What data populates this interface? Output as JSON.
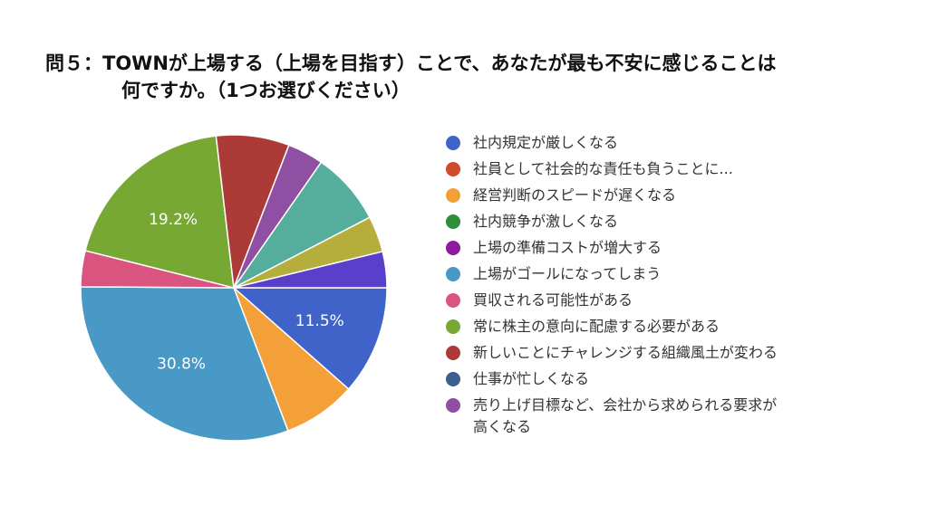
{
  "title": {
    "line1": "問５：TOWNが上場する（上場を目指す）ことで、あなたが最も不安に感じることは",
    "line2": "何ですか。（1つお選びください）"
  },
  "chart_data": {
    "type": "pie",
    "slices": [
      {
        "label": "社内規定が厳しくなる",
        "value": 11.5,
        "color": "#3f63c9",
        "data_label": "11.5%"
      },
      {
        "label": "社員として社会的な責任も負うことに...",
        "value": 0,
        "color": "#d34a2a",
        "data_label": ""
      },
      {
        "label": "経営判断のスピードが遅くなる",
        "value": 7.7,
        "color": "#f4a038",
        "data_label": ""
      },
      {
        "label": "社内競争が激しくなる",
        "value": 0,
        "color": "#2e8f3a",
        "data_label": ""
      },
      {
        "label": "上場の準備コストが増大する",
        "value": 0,
        "color": "#8e1b9e",
        "data_label": ""
      },
      {
        "label": "上場がゴールになってしまう",
        "value": 30.8,
        "color": "#4899c6",
        "data_label": "30.8%"
      },
      {
        "label": "買収される可能性がある",
        "value": 3.8,
        "color": "#d9557f",
        "data_label": ""
      },
      {
        "label": "常に株主の意向に配慮する必要がある",
        "value": 19.2,
        "color": "#77a833",
        "data_label": "19.2%"
      },
      {
        "label": "新しいことにチャレンジする組織風土が変わる",
        "value": 7.7,
        "color": "#ac3a36",
        "data_label": ""
      },
      {
        "label": "仕事が忙しくなる",
        "value": 0,
        "color": "#3b5f91",
        "data_label": ""
      },
      {
        "label": "売り上げ目標など、会社から求められる要求が高くなる",
        "value": 3.8,
        "color": "#8f4fa3",
        "data_label": ""
      },
      {
        "label": "",
        "value": 7.7,
        "color": "#55ad9c",
        "data_label": ""
      },
      {
        "label": "",
        "value": 3.8,
        "color": "#b5ad3c",
        "data_label": ""
      },
      {
        "label": "",
        "value": 3.8,
        "color": "#5a3fcb",
        "data_label": ""
      }
    ],
    "legend_placement": "right",
    "start_angle": "3 o'clock, clockwise"
  },
  "legend": {
    "items": [
      {
        "label": "社内規定が厳しくなる",
        "color": "#3f63c9"
      },
      {
        "label": "社員として社会的な責任も負うことに...",
        "color": "#d34a2a"
      },
      {
        "label": "経営判断のスピードが遅くなる",
        "color": "#f4a038"
      },
      {
        "label": "社内競争が激しくなる",
        "color": "#2e8f3a"
      },
      {
        "label": "上場の準備コストが増大する",
        "color": "#8e1b9e"
      },
      {
        "label": "上場がゴールになってしまう",
        "color": "#4899c6"
      },
      {
        "label": "買収される可能性がある",
        "color": "#d9557f"
      },
      {
        "label": "常に株主の意向に配慮する必要がある",
        "color": "#77a833"
      },
      {
        "label": "新しいことにチャレンジする組織風土が変わる",
        "color": "#ac3a36"
      },
      {
        "label": "仕事が忙しくなる",
        "color": "#3b5f91"
      },
      {
        "label": "売り上げ目標など、会社から求められる要求が高くなる",
        "color": "#8f4fa3"
      }
    ]
  }
}
